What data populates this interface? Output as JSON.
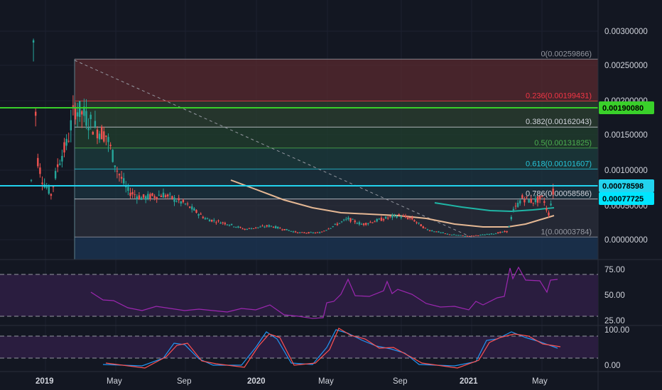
{
  "colors": {
    "background": "#131722",
    "grid": "#1e2230",
    "candle_up": "#26a69a",
    "candle_down": "#ef5350",
    "horizontal_green": "#39d02a",
    "horizontal_cyan": "#22d3ee",
    "rsi_line": "#9c27b0",
    "stoch_k": "#2196f3",
    "stoch_d": "#ff5252",
    "ma_teal": "#1fb6a6",
    "ma_tan": "#e5b894"
  },
  "price_axis": {
    "ticks": [
      "0.00300000",
      "0.00250000",
      "0.00200000",
      "0.00150000",
      "0.00100000",
      "0.00050000",
      "0.00000000"
    ]
  },
  "rsi_axis": {
    "ticks": [
      "75.00",
      "50.00",
      "25.00"
    ]
  },
  "stoch_axis": {
    "ticks": [
      "100.00",
      "0.00"
    ]
  },
  "time_axis": {
    "labels": [
      "2019",
      "May",
      "Sep",
      "2020",
      "May",
      "Sep",
      "2021",
      "May"
    ]
  },
  "fib_levels": [
    {
      "label": "0(0.00259866)",
      "value": 0.00259866,
      "color": "#9598a1"
    },
    {
      "label": "0.236(0.00199431)",
      "value": 0.00199431,
      "color": "#f23645"
    },
    {
      "label": "0.382(0.00162043)",
      "value": 0.00162043,
      "color": "#d1d4dc"
    },
    {
      "label": "0.5(0.00131825)",
      "value": 0.00131825,
      "color": "#4caf50"
    },
    {
      "label": "0.618(0.00101607)",
      "value": 0.00101607,
      "color": "#26c6da"
    },
    {
      "label": "0.786(0.00058586)",
      "value": 0.00058586,
      "color": "#d1d4dc"
    },
    {
      "label": "1(0.00003784)",
      "value": 3.784e-05,
      "color": "#9598a1"
    }
  ],
  "price_tags": [
    {
      "label": "0.00190080",
      "value": 0.0019008,
      "bg": "#39d02a",
      "fg": "#000000"
    },
    {
      "label": "0.00078598",
      "value": 0.00078598,
      "bg": "#22d3ee",
      "fg": "#000000"
    },
    {
      "label": "0.00077725",
      "value": 0.00077725,
      "bg": "#00e5ff",
      "fg": "#000000"
    }
  ]
}
